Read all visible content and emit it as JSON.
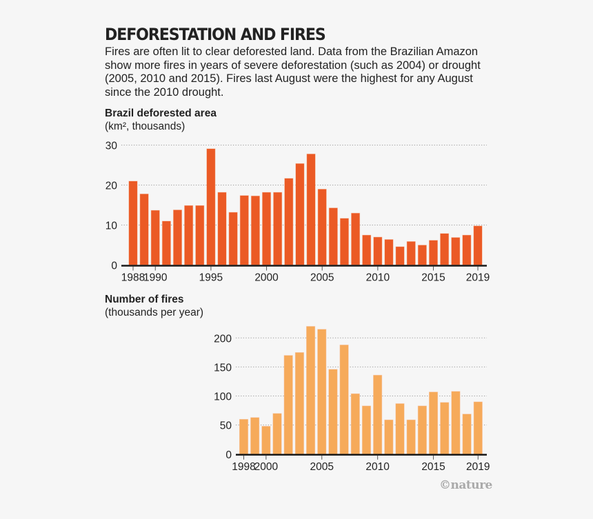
{
  "header": {
    "title": "DEFORESTATION AND FIRES",
    "description": "Fires are often lit to clear deforested land. Data from the Brazilian Amazon show more fires in years of severe deforestation (such as 2004) or drought (2005, 2010 and 2015). Fires last August were the highest for any August since the 2010 drought."
  },
  "credit": "©nature",
  "chart_data": [
    {
      "type": "bar",
      "title": "Brazil deforested area",
      "unit_label": "(km², thousands)",
      "xlabel": "",
      "ylabel": "km², thousands",
      "color": "#eb5a25",
      "ylim": [
        0,
        30
      ],
      "yticks": [
        0,
        10,
        20,
        30
      ],
      "xticks": [
        1988,
        1990,
        1995,
        2000,
        2005,
        2010,
        2015,
        2019
      ],
      "grid": true,
      "categories": [
        1988,
        1989,
        1990,
        1991,
        1992,
        1993,
        1994,
        1995,
        1996,
        1997,
        1998,
        1999,
        2000,
        2001,
        2002,
        2003,
        2004,
        2005,
        2006,
        2007,
        2008,
        2009,
        2010,
        2011,
        2012,
        2013,
        2014,
        2015,
        2016,
        2017,
        2018,
        2019
      ],
      "values": [
        21.0,
        17.8,
        13.7,
        11.0,
        13.8,
        14.9,
        14.9,
        29.1,
        18.2,
        13.2,
        17.4,
        17.3,
        18.2,
        18.2,
        21.7,
        25.4,
        27.8,
        19.0,
        14.3,
        11.7,
        13.0,
        7.5,
        7.0,
        6.4,
        4.6,
        5.9,
        5.0,
        6.2,
        7.9,
        6.9,
        7.5,
        9.8
      ]
    },
    {
      "type": "bar",
      "title": "Number of fires",
      "unit_label": "(thousands per year)",
      "xlabel": "",
      "ylabel": "thousands per year",
      "color": "#f6aa5a",
      "ylim": [
        0,
        200
      ],
      "yticks": [
        0,
        50,
        100,
        150,
        200
      ],
      "xticks": [
        1998,
        2000,
        2005,
        2010,
        2015,
        2019
      ],
      "grid": true,
      "categories": [
        1998,
        1999,
        2000,
        2001,
        2002,
        2003,
        2004,
        2005,
        2006,
        2007,
        2008,
        2009,
        2010,
        2011,
        2012,
        2013,
        2014,
        2015,
        2016,
        2017,
        2018,
        2019
      ],
      "values": [
        60,
        63,
        48,
        70,
        170,
        175,
        220,
        215,
        146,
        188,
        104,
        83,
        136,
        59,
        87,
        59,
        83,
        107,
        89,
        108,
        69,
        90
      ]
    }
  ]
}
